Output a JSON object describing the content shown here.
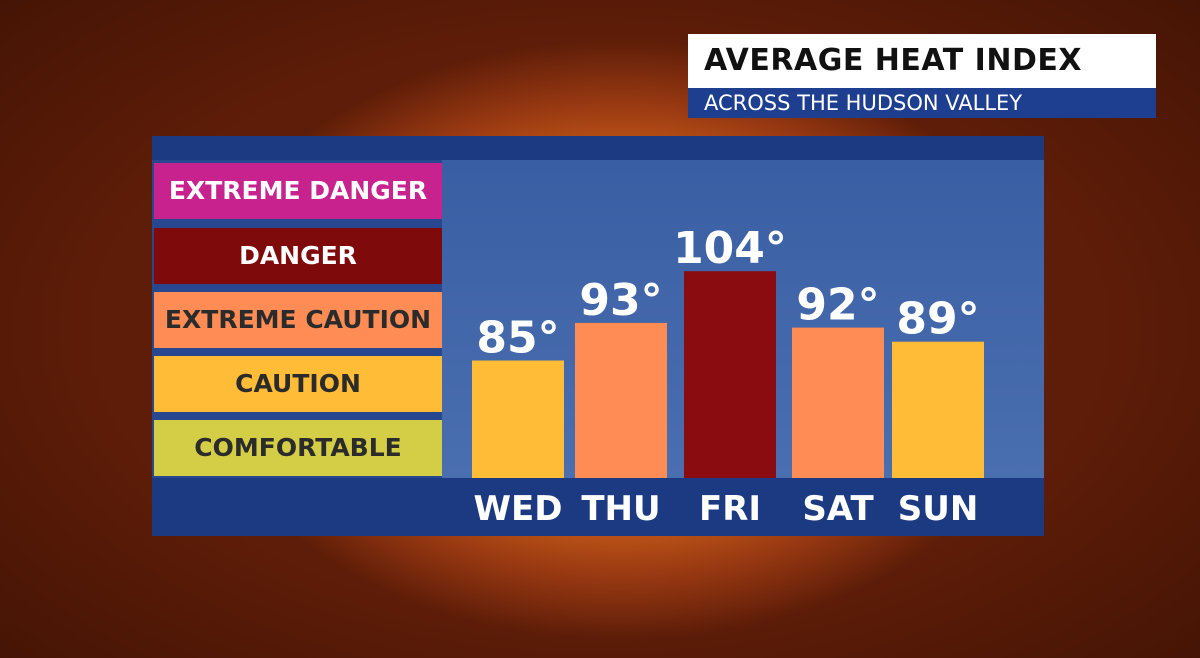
{
  "header": {
    "title": "AVERAGE HEAT INDEX",
    "subtitle": "ACROSS THE HUDSON VALLEY"
  },
  "legend": [
    {
      "label": "EXTREME DANGER",
      "color": "#c8228f",
      "text_color": "#ffffff"
    },
    {
      "label": "DANGER",
      "color": "#7e0a0c",
      "text_color": "#ffffff"
    },
    {
      "label": "EXTREME CAUTION",
      "color": "#ff8c54",
      "text_color": "#2b2b2b"
    },
    {
      "label": "CAUTION",
      "color": "#ffbc36",
      "text_color": "#2b2b2b"
    },
    {
      "label": "COMFORTABLE",
      "color": "#d4ce46",
      "text_color": "#2b2b2b"
    }
  ],
  "chart_data": {
    "type": "bar",
    "title": "AVERAGE HEAT INDEX",
    "subtitle": "ACROSS THE HUDSON VALLEY",
    "categories": [
      "WED",
      "THU",
      "FRI",
      "SAT",
      "SUN"
    ],
    "values": [
      85,
      93,
      104,
      92,
      89
    ],
    "data_labels": [
      "85°",
      "93°",
      "104°",
      "92°",
      "89°"
    ],
    "bar_colors": [
      "#ffbc36",
      "#ff8c54",
      "#8a0c10",
      "#ff8c54",
      "#ffbc36"
    ],
    "categories_of_risk": [
      "CAUTION",
      "EXTREME CAUTION",
      "DANGER",
      "EXTREME CAUTION",
      "CAUTION"
    ],
    "ylim": [
      60,
      110
    ],
    "grid": false
  }
}
